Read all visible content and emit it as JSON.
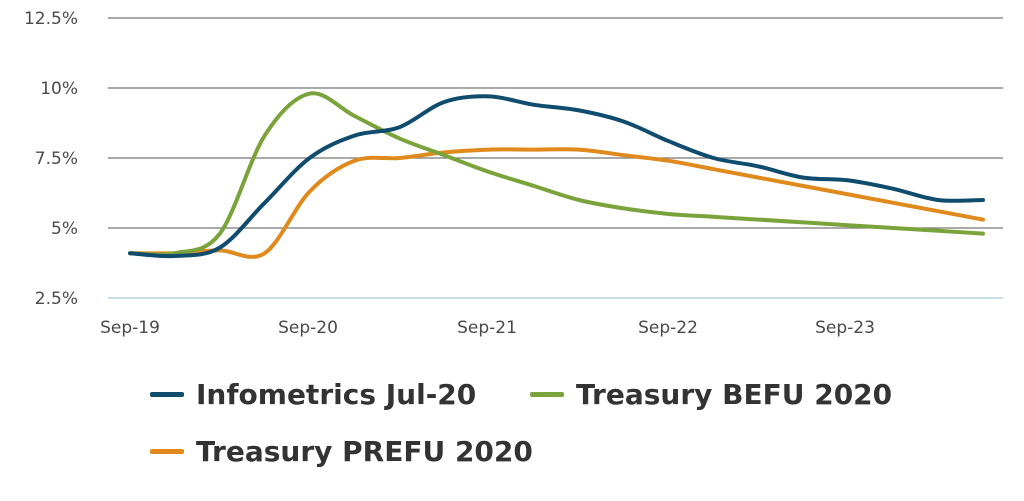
{
  "chart_data": {
    "type": "line",
    "title": "",
    "xlabel": "",
    "ylabel": "",
    "x_ticks": [
      "Sep-19",
      "Sep-20",
      "Sep-21",
      "Sep-22",
      "Sep-23"
    ],
    "y_ticks": [
      "12.5%",
      "10%",
      "7.5%",
      "5%",
      "2.5%"
    ],
    "y_tick_values": [
      12.5,
      10,
      7.5,
      5,
      2.5
    ],
    "ylim": [
      2.5,
      12.5
    ],
    "grid": "horizontal",
    "legend_position": "bottom",
    "series": [
      {
        "name": "Infometrics Jul-20",
        "color": "#0f4c6e",
        "x": [
          "Sep-19",
          "Dec-19",
          "Mar-20",
          "Jun-20",
          "Sep-20",
          "Dec-20",
          "Mar-21",
          "Jun-21",
          "Sep-21",
          "Dec-21",
          "Mar-22",
          "Jun-22",
          "Sep-22",
          "Dec-22",
          "Mar-23",
          "Jun-23",
          "Sep-23",
          "Dec-23",
          "Mar-24",
          "Jun-24"
        ],
        "values": [
          4.1,
          4.0,
          4.3,
          5.9,
          7.5,
          8.3,
          8.6,
          9.5,
          9.7,
          9.4,
          9.2,
          8.8,
          8.1,
          7.5,
          7.2,
          6.8,
          6.7,
          6.4,
          6.0,
          6.0
        ]
      },
      {
        "name": "Treasury BEFU 2020",
        "color": "#7aa33b",
        "x": [
          "Sep-19",
          "Dec-19",
          "Mar-20",
          "Jun-20",
          "Sep-20",
          "Dec-20",
          "Mar-21",
          "Jun-21",
          "Sep-21",
          "Dec-21",
          "Mar-22",
          "Jun-22",
          "Sep-22",
          "Dec-22",
          "Mar-23",
          "Jun-23",
          "Sep-23",
          "Dec-23",
          "Mar-24",
          "Jun-24"
        ],
        "values": [
          4.1,
          4.1,
          4.8,
          8.3,
          9.8,
          9.0,
          8.2,
          7.6,
          7.0,
          6.5,
          6.0,
          5.7,
          5.5,
          5.4,
          5.3,
          5.2,
          5.1,
          5.0,
          4.9,
          4.8
        ]
      },
      {
        "name": "Treasury PREFU 2020",
        "color": "#e08a1e",
        "x": [
          "Sep-19",
          "Dec-19",
          "Mar-20",
          "Jun-20",
          "Sep-20",
          "Dec-20",
          "Mar-21",
          "Jun-21",
          "Sep-21",
          "Dec-21",
          "Mar-22",
          "Jun-22",
          "Sep-22",
          "Dec-22",
          "Mar-23",
          "Jun-23",
          "Sep-23",
          "Dec-23",
          "Mar-24",
          "Jun-24"
        ],
        "values": [
          4.1,
          4.1,
          4.2,
          4.1,
          6.3,
          7.4,
          7.5,
          7.7,
          7.8,
          7.8,
          7.8,
          7.6,
          7.4,
          7.1,
          6.8,
          6.5,
          6.2,
          5.9,
          5.6,
          5.3
        ]
      }
    ]
  }
}
